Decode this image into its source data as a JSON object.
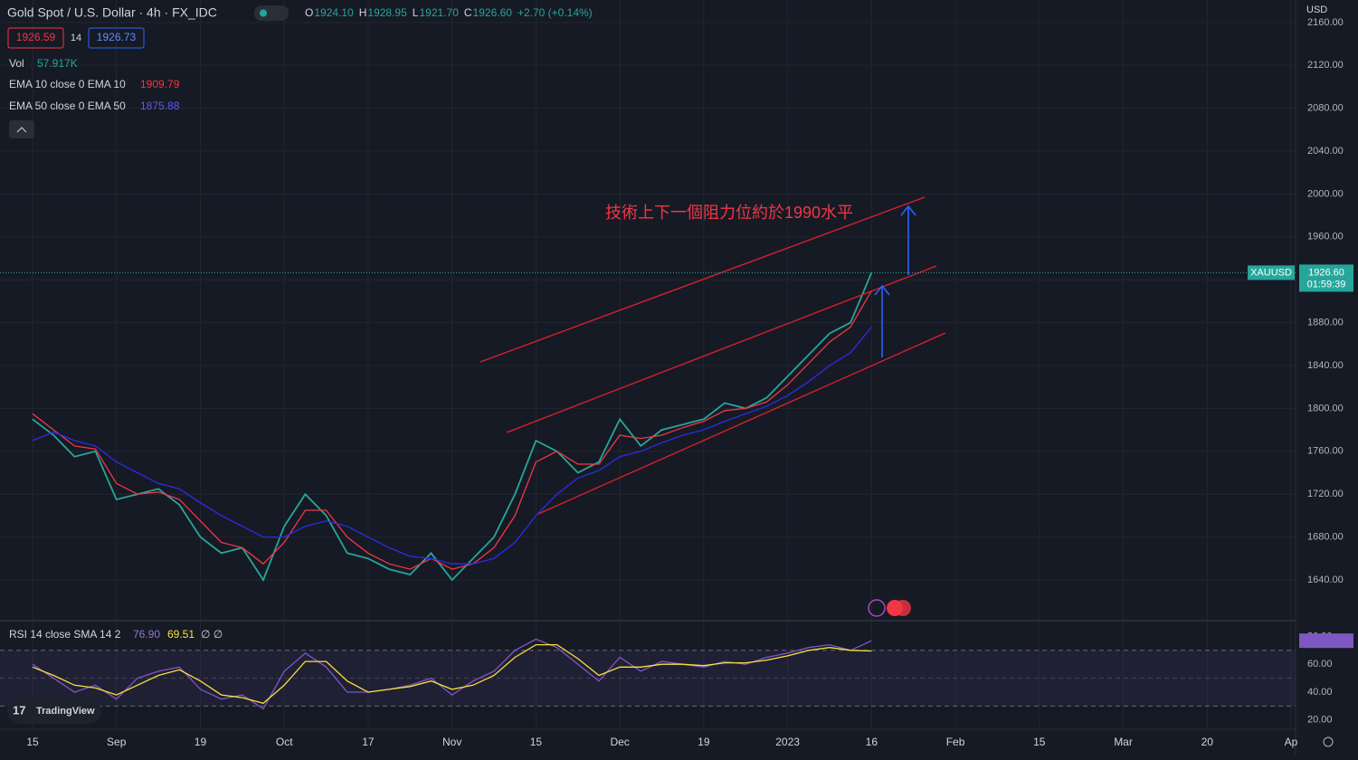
{
  "header": {
    "symbol": "Gold Spot / U.S. Dollar · 4h · FX_IDC",
    "ohlc": [
      {
        "letter": "O",
        "value": "1924.10"
      },
      {
        "letter": "H",
        "value": "1928.95"
      },
      {
        "letter": "L",
        "value": "1921.70"
      },
      {
        "letter": "C",
        "value": "1926.60"
      }
    ],
    "change": "+2.70 (+0.14%)",
    "bid": "1926.59",
    "spread": "14",
    "ask": "1926.73",
    "currency": "USD"
  },
  "volume": {
    "name": "Vol",
    "value": "57.917K"
  },
  "price_tag": {
    "symbol": "XAUUSD",
    "timer": "01:59:39"
  },
  "logo": "TradingView",
  "chart_data": [
    {
      "type": "line",
      "annotation": "技術上下一個阻力位約於1990水平",
      "categories": [
        "15",
        null,
        null,
        null,
        "Sep",
        null,
        null,
        null,
        "19",
        null,
        null,
        null,
        "Oct",
        null,
        null,
        null,
        "17",
        null,
        null,
        null,
        "Nov",
        null,
        null,
        null,
        "15",
        null,
        null,
        null,
        "Dec",
        null,
        null,
        null,
        "19",
        null,
        null,
        null,
        "2023",
        null,
        null,
        null,
        "16",
        null,
        null,
        null,
        "Feb",
        null,
        null,
        null,
        "15",
        null,
        null,
        null,
        "Mar",
        null,
        null,
        null,
        "20",
        null,
        null,
        null,
        "Ap"
      ],
      "series": [
        {
          "name": "XAUUSD",
          "color": "#26a69a",
          "values": [
            1790,
            1775,
            1755,
            1760,
            1715,
            1720,
            1725,
            1710,
            1680,
            1665,
            1670,
            1640,
            1690,
            1720,
            1700,
            1665,
            1660,
            1650,
            1645,
            1665,
            1640,
            1660,
            1680,
            1720,
            1770,
            1760,
            1740,
            1750,
            1790,
            1765,
            1780,
            1785,
            1790,
            1805,
            1800,
            1810,
            1830,
            1850,
            1870,
            1880,
            1926.6,
            null,
            null,
            null,
            null,
            null,
            null,
            null,
            null,
            null,
            null,
            null,
            null,
            null,
            null,
            null,
            null,
            null,
            null,
            null,
            null
          ],
          "value_labels": [
            null,
            null,
            null,
            null,
            null,
            null,
            null,
            null,
            null,
            null,
            null,
            null,
            null,
            null,
            null,
            null,
            null,
            null,
            null,
            null,
            null,
            null,
            null,
            null,
            null,
            null,
            null,
            null,
            null,
            null,
            null,
            null,
            null,
            null,
            null,
            null,
            null,
            null,
            null,
            null,
            "1926.60",
            null,
            null,
            null,
            null,
            null,
            null,
            null,
            null,
            null,
            null,
            null,
            null,
            null,
            null,
            null,
            null,
            null,
            null,
            null,
            null
          ]
        },
        {
          "name": "EMA 10 close 0 EMA 10",
          "color": "#f23645",
          "values": [
            1795,
            1780,
            1765,
            1762,
            1730,
            1720,
            1722,
            1715,
            1695,
            1675,
            1670,
            1655,
            1675,
            1705,
            1705,
            1680,
            1665,
            1655,
            1650,
            1660,
            1650,
            1655,
            1670,
            1700,
            1750,
            1760,
            1748,
            1748,
            1775,
            1772,
            1775,
            1782,
            1788,
            1798,
            1800,
            1806,
            1822,
            1842,
            1862,
            1876,
            1909.79,
            null,
            null,
            null,
            null,
            null,
            null,
            null,
            null,
            null,
            null,
            null,
            null,
            null,
            null,
            null,
            null,
            null,
            null,
            null,
            null
          ]
        },
        {
          "name": "EMA 50 close 0 EMA 50",
          "color": "#2a2ee8",
          "values": [
            1770,
            1778,
            1770,
            1765,
            1750,
            1740,
            1730,
            1725,
            1712,
            1700,
            1690,
            1680,
            1680,
            1690,
            1695,
            1690,
            1680,
            1670,
            1662,
            1660,
            1655,
            1655,
            1660,
            1675,
            1700,
            1720,
            1735,
            1742,
            1755,
            1760,
            1768,
            1775,
            1780,
            1788,
            1795,
            1802,
            1812,
            1825,
            1840,
            1852,
            1875.88,
            null,
            null,
            null,
            null,
            null,
            null,
            null,
            null,
            null,
            null,
            null,
            null,
            null,
            null,
            null,
            null,
            null,
            null,
            null,
            null
          ]
        }
      ],
      "ylim": [
        1602,
        2181
      ],
      "yticks": [
        {
          "value": 2160,
          "label": "2160.00"
        },
        {
          "value": 2120,
          "label": "2120.00"
        },
        {
          "value": 2080,
          "label": "2080.00"
        },
        {
          "value": 2040,
          "label": "2040.00"
        },
        {
          "value": 2000,
          "label": "2000.00"
        },
        {
          "value": 1960,
          "label": "1960.00"
        },
        {
          "value": 1920,
          "label": "1920.00"
        },
        {
          "value": 1880,
          "label": "1880.00"
        },
        {
          "value": 1840,
          "label": "1840.00"
        },
        {
          "value": 1800,
          "label": "1800.00"
        },
        {
          "value": 1760,
          "label": "1760.00"
        },
        {
          "value": 1720,
          "label": "1720.00"
        },
        {
          "value": 1680,
          "label": "1680.00"
        },
        {
          "value": 1640,
          "label": "1640.00"
        }
      ],
      "grid": true
    },
    {
      "type": "line",
      "title": "RSI 14 close SMA 14 2",
      "extra": "∅ ∅",
      "series": [
        {
          "name": "RSI",
          "color": "#7e57c2",
          "values": [
            60,
            50,
            40,
            45,
            35,
            50,
            55,
            58,
            42,
            35,
            38,
            28,
            55,
            68,
            58,
            40,
            40,
            42,
            45,
            50,
            38,
            48,
            55,
            70,
            78,
            72,
            60,
            48,
            65,
            55,
            62,
            60,
            58,
            62,
            60,
            65,
            68,
            72,
            74,
            70,
            76.9,
            null,
            null,
            null,
            null,
            null,
            null,
            null,
            null,
            null,
            null,
            null,
            null,
            null,
            null,
            null,
            null,
            null,
            null,
            null,
            null
          ],
          "value_labels": [
            null,
            null,
            null,
            null,
            null,
            null,
            null,
            null,
            null,
            null,
            null,
            null,
            null,
            null,
            null,
            null,
            null,
            null,
            null,
            null,
            null,
            null,
            null,
            null,
            null,
            null,
            null,
            null,
            null,
            null,
            null,
            null,
            null,
            null,
            null,
            null,
            null,
            null,
            null,
            null,
            "76.90",
            null,
            null,
            null,
            null,
            null,
            null,
            null,
            null,
            null,
            null,
            null,
            null,
            null,
            null,
            null,
            null,
            null,
            null,
            null,
            null
          ]
        },
        {
          "name": "SMA",
          "color": "#f7e13b",
          "values": [
            58,
            52,
            45,
            43,
            38,
            45,
            52,
            56,
            48,
            38,
            36,
            32,
            45,
            62,
            62,
            48,
            40,
            42,
            44,
            48,
            42,
            45,
            52,
            65,
            74,
            74,
            64,
            52,
            58,
            58,
            60,
            60,
            59,
            61,
            61,
            63,
            66,
            70,
            72,
            70,
            69.51,
            null,
            null,
            null,
            null,
            null,
            null,
            null,
            null,
            null,
            null,
            null,
            null,
            null,
            null,
            null,
            null,
            null,
            null,
            null,
            null
          ]
        }
      ],
      "ylim": [
        14,
        90
      ],
      "yticks": [
        {
          "value": 80,
          "label": "80.00"
        },
        {
          "value": 60,
          "label": "60.00"
        },
        {
          "value": 40,
          "label": "40.00"
        },
        {
          "value": 20,
          "label": "20.00"
        }
      ],
      "levels": [
        70,
        50,
        30
      ]
    }
  ]
}
